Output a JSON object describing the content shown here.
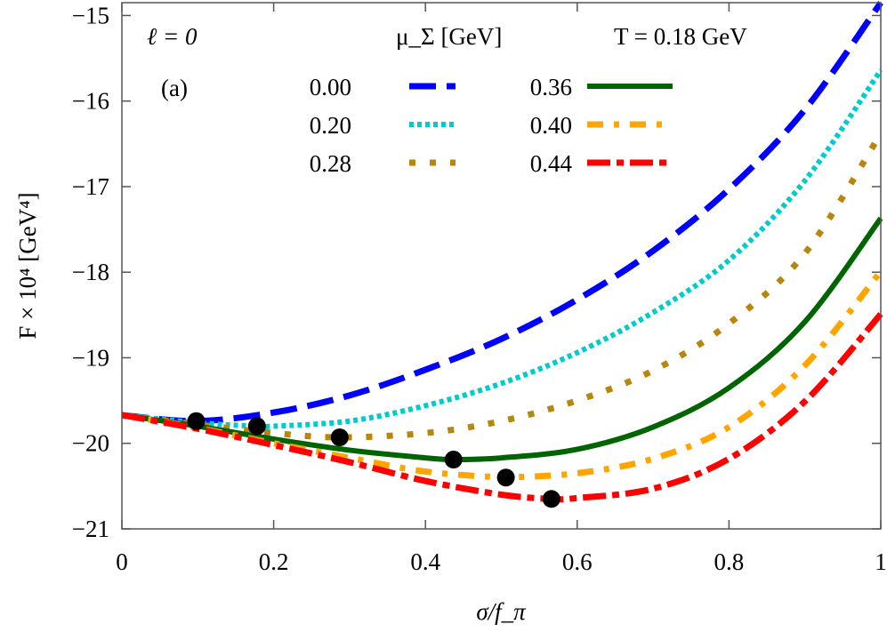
{
  "chart_data": {
    "type": "line",
    "xlabel": "σ/f_π",
    "ylabel": "F × 10⁴ [GeV⁴]",
    "xlim": [
      0,
      1
    ],
    "ylim": [
      -21,
      -14.85
    ],
    "xticks": [
      0,
      0.2,
      0.4,
      0.6,
      0.8,
      1
    ],
    "xtick_labels": [
      "0",
      "0.2",
      "0.4",
      "0.6",
      "0.8",
      "1"
    ],
    "yticks": [
      -21,
      -20,
      -19,
      -18,
      -17,
      -16,
      -15
    ],
    "ytick_labels": [
      "−21",
      "−20",
      "−19",
      "−18",
      "−17",
      "−16",
      "−15"
    ],
    "grid": false,
    "legend_placement": "top",
    "annotations": {
      "ell": "ℓ = 0",
      "panel": "(a)",
      "legend_title": "μ_Σ [GeV]",
      "temperature": "T = 0.18 GeV"
    },
    "x": [
      0,
      0.1,
      0.2,
      0.3,
      0.4,
      0.5,
      0.6,
      0.7,
      0.8,
      0.9,
      1.0
    ],
    "series": [
      {
        "name": "0.00",
        "color": "#0000ff",
        "style": "dashed",
        "values": [
          -19.67,
          -19.74,
          -19.64,
          -19.44,
          -19.14,
          -18.78,
          -18.32,
          -17.75,
          -17.03,
          -16.1,
          -14.85
        ],
        "minimum": [
          0.098,
          -19.74
        ]
      },
      {
        "name": "0.20",
        "color": "#00cccc",
        "style": "dotted",
        "values": [
          -19.67,
          -19.76,
          -19.8,
          -19.74,
          -19.56,
          -19.3,
          -18.94,
          -18.47,
          -17.86,
          -16.93,
          -15.64
        ],
        "minimum": [
          0.178,
          -19.8
        ]
      },
      {
        "name": "0.28",
        "color": "#b8860b",
        "style": "sparse-dotted",
        "values": [
          -19.67,
          -19.78,
          -19.88,
          -19.93,
          -19.88,
          -19.74,
          -19.5,
          -19.15,
          -18.6,
          -17.78,
          -16.38
        ],
        "minimum": [
          0.287,
          -19.93
        ]
      },
      {
        "name": "0.36",
        "color": "#006400",
        "style": "solid",
        "values": [
          -19.67,
          -19.8,
          -19.95,
          -20.08,
          -20.17,
          -20.17,
          -20.07,
          -19.81,
          -19.35,
          -18.58,
          -17.37
        ],
        "minimum": [
          0.437,
          -20.19
        ]
      },
      {
        "name": "0.40",
        "color": "#ffa500",
        "style": "dash-dot",
        "values": [
          -19.67,
          -19.82,
          -20.0,
          -20.17,
          -20.33,
          -20.4,
          -20.35,
          -20.18,
          -19.81,
          -19.09,
          -17.99
        ],
        "minimum": [
          0.506,
          -20.4
        ]
      },
      {
        "name": "0.44",
        "color": "#ff0000",
        "style": "long-dash-dot",
        "values": [
          -19.67,
          -19.83,
          -20.02,
          -20.22,
          -20.44,
          -20.6,
          -20.64,
          -20.53,
          -20.18,
          -19.51,
          -18.49
        ],
        "minimum": [
          0.566,
          -20.65
        ]
      }
    ]
  }
}
